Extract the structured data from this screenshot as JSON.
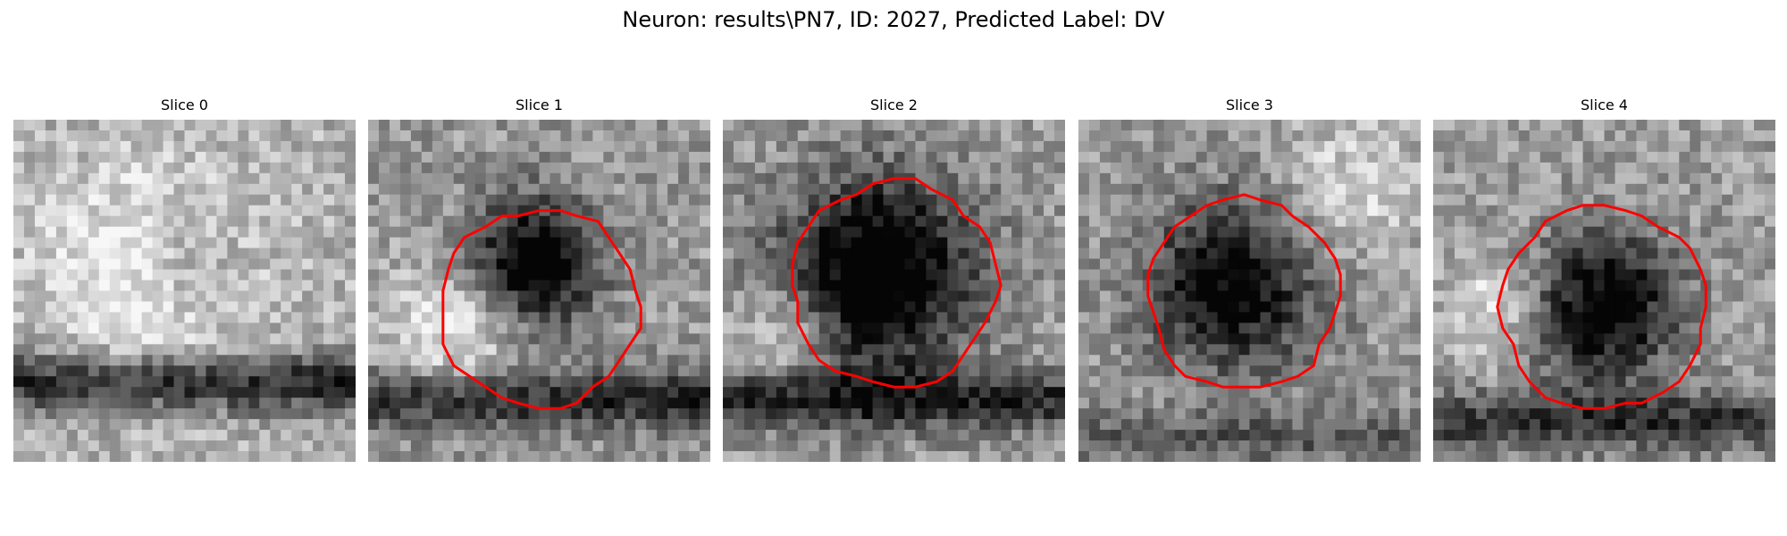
{
  "figure": {
    "title": "Neuron: results\\PN7, ID: 2027, Predicted Label: DV"
  },
  "colors": {
    "contour": "#ff0000"
  },
  "panels": [
    {
      "title": "Slice 0"
    },
    {
      "title": "Slice 1"
    },
    {
      "title": "Slice 2"
    },
    {
      "title": "Slice 3"
    },
    {
      "title": "Slice 4"
    }
  ]
}
